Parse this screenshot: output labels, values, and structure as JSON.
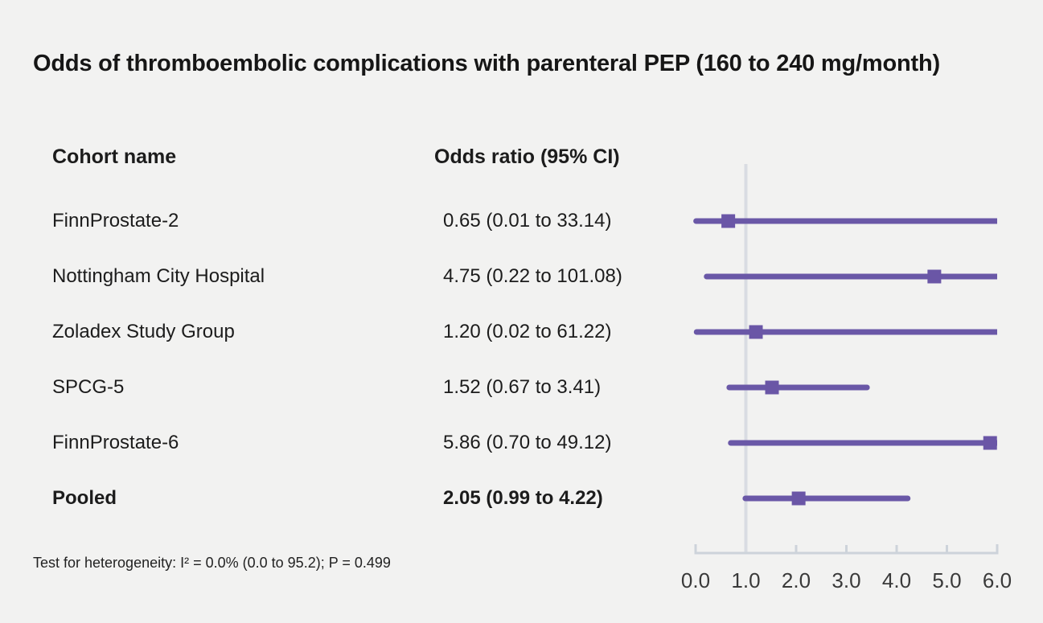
{
  "figure": {
    "title": "Odds of thromboembolic complications with parenteral PEP (160 to 240 mg/month)",
    "column_headers": {
      "cohort": "Cohort name",
      "odds_ratio": "Odds ratio (95% CI)"
    },
    "footnote": "Test for heterogeneity: I² = 0.0% (0.0 to 95.2); P = 0.499"
  },
  "chart_data": {
    "type": "scatter",
    "variant": "forest-plot",
    "title": "Odds of thromboembolic complications with parenteral PEP (160 to 240 mg/month)",
    "xlabel": "Odds ratio",
    "ylabel": "",
    "xlim": [
      0,
      6
    ],
    "xticks": [
      "0.0",
      "1.0",
      "2.0",
      "3.0",
      "4.0",
      "5.0",
      "6.0"
    ],
    "xtick_values": [
      0,
      1,
      2,
      3,
      4,
      5,
      6
    ],
    "reference_line_x": 1.0,
    "grid": false,
    "legend": "none",
    "rows": [
      {
        "cohort": "FinnProstate-2",
        "or_text": "0.65 (0.01 to 33.14)",
        "or": 0.65,
        "ci_low": 0.01,
        "ci_high": 33.14,
        "pooled": false
      },
      {
        "cohort": "Nottingham City Hospital",
        "or_text": "4.75 (0.22 to 101.08)",
        "or": 4.75,
        "ci_low": 0.22,
        "ci_high": 101.08,
        "pooled": false
      },
      {
        "cohort": "Zoladex Study Group",
        "or_text": "1.20 (0.02 to 61.22)",
        "or": 1.2,
        "ci_low": 0.02,
        "ci_high": 61.22,
        "pooled": false
      },
      {
        "cohort": "SPCG-5",
        "or_text": "1.52 (0.67 to 3.41)",
        "or": 1.52,
        "ci_low": 0.67,
        "ci_high": 3.41,
        "pooled": false
      },
      {
        "cohort": "FinnProstate-6",
        "or_text": "5.86 (0.70 to 49.12)",
        "or": 5.86,
        "ci_low": 0.7,
        "ci_high": 49.12,
        "pooled": false
      },
      {
        "cohort": "Pooled",
        "or_text": "2.05 (0.99 to 4.22)",
        "or": 2.05,
        "ci_low": 0.99,
        "ci_high": 4.22,
        "pooled": true
      }
    ],
    "heterogeneity_note": "Test for heterogeneity: I² = 0.0% (0.0 to 95.2); P = 0.499",
    "colors": {
      "marker": "#6a56a6",
      "ci_line": "#6a58a7",
      "reference_line": "#d9dce2",
      "axis": "#cdd3da",
      "tick_label": "#3a3a3a",
      "text": "#1c1c1c",
      "background": "#f2f2f1"
    }
  }
}
